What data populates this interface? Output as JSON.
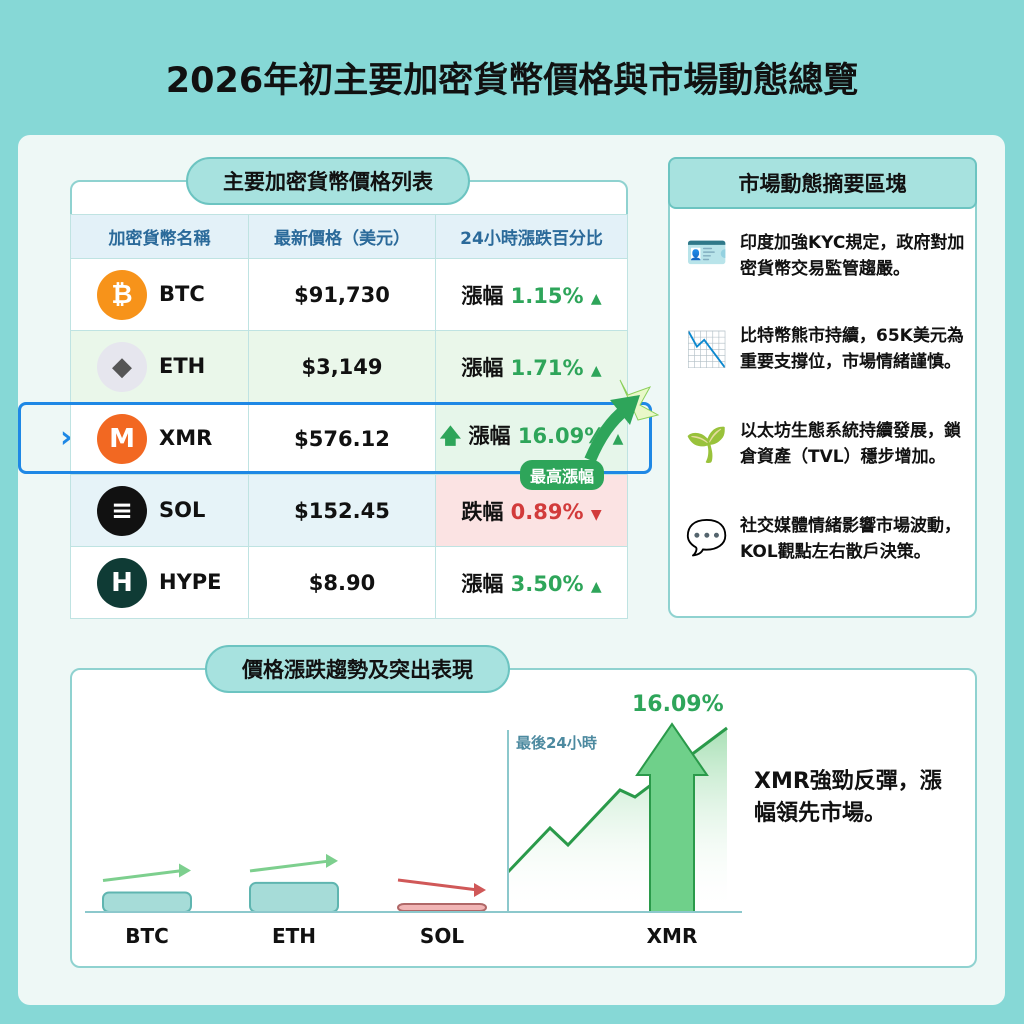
{
  "title": "2026年初主要加密貨幣價格與市場動態總覽",
  "table": {
    "heading": "主要加密貨幣價格列表",
    "columns": [
      "加密貨幣名稱",
      "最新價格（美元）",
      "24小時漲跌百分比"
    ],
    "rows": [
      {
        "symbol": "BTC",
        "price": "$91,730",
        "label": "漲幅",
        "change": "1.15%",
        "dir": "up",
        "icon": "bitcoin-icon",
        "color": "#f7931a"
      },
      {
        "symbol": "ETH",
        "price": "$3,149",
        "label": "漲幅",
        "change": "1.71%",
        "dir": "up",
        "icon": "ethereum-icon",
        "color": "#e6e6ee"
      },
      {
        "symbol": "XMR",
        "price": "$576.12",
        "label": "漲幅",
        "change": "16.09%",
        "dir": "up",
        "icon": "monero-icon",
        "color": "#f26822"
      },
      {
        "symbol": "SOL",
        "price": "$152.45",
        "label": "跌幅",
        "change": "0.89%",
        "dir": "down",
        "icon": "solana-icon",
        "color": "#111111"
      },
      {
        "symbol": "HYPE",
        "price": "$8.90",
        "label": "漲幅",
        "change": "3.50%",
        "dir": "up",
        "icon": "hyperliquid-icon",
        "color": "#0f3b35"
      }
    ],
    "highlight_badge": "最高漲幅"
  },
  "news": {
    "heading": "市場動態摘要區塊",
    "items": [
      "印度加強KYC規定，政府對加密貨幣交易監管趨嚴。",
      "比特幣熊市持續，65K美元為重要支撐位，市場情緒謹慎。",
      "以太坊生態系統持續發展，鎖倉資產（TVL）穩步增加。",
      "社交媒體情緒影響市場波動，KOL觀點左右散戶決策。"
    ]
  },
  "chart_data": {
    "type": "bar",
    "title": "價格漲跌趨勢及突出表現",
    "categories": [
      "BTC",
      "ETH",
      "SOL",
      "XMR"
    ],
    "values": [
      1.15,
      1.71,
      -0.89,
      16.09
    ],
    "highlight_label": "16.09%",
    "period_label": "最後24小時",
    "caption": "XMR強勁反彈，漲幅領先市場。"
  },
  "colors": {
    "up": "#2ea55a",
    "down": "#d23b3b",
    "accent": "#1e88e5"
  }
}
